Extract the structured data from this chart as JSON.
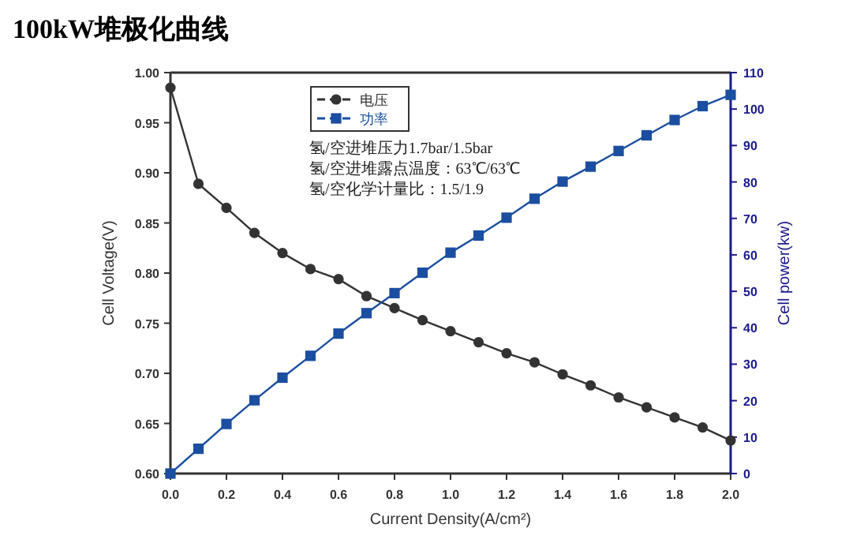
{
  "chart_data": {
    "type": "line",
    "title": "100kW堆极化曲线",
    "xlabel": "Current Density(A/cm²)",
    "ylabel": "Cell Voltage(V)",
    "y2label": "Cell power(kw)",
    "x": [
      0.0,
      0.1,
      0.2,
      0.3,
      0.4,
      0.5,
      0.6,
      0.7,
      0.8,
      0.9,
      1.0,
      1.1,
      1.2,
      1.3,
      1.4,
      1.5,
      1.6,
      1.7,
      1.8,
      1.9,
      2.0
    ],
    "series": [
      {
        "name": "电压",
        "color": "#333333",
        "marker": "circle",
        "values": [
          0.985,
          0.889,
          0.865,
          0.84,
          0.82,
          0.804,
          0.794,
          0.777,
          0.765,
          0.753,
          0.742,
          0.731,
          0.72,
          0.711,
          0.699,
          0.688,
          0.676,
          0.666,
          0.656,
          0.646,
          0.633
        ]
      },
      {
        "name": "功率",
        "color": "#1a4ea0",
        "marker": "square",
        "axis": "y2",
        "values": [
          0,
          6.8,
          13.6,
          20.1,
          26.3,
          32.3,
          38.4,
          44.0,
          49.5,
          55.1,
          60.6,
          65.3,
          70.2,
          75.4,
          80.1,
          84.2,
          88.5,
          92.8,
          97.0,
          100.8,
          103.9
        ]
      }
    ],
    "xlim": [
      0,
      2.0
    ],
    "xticks": [
      {
        "value": 0,
        "label": "0.0"
      },
      {
        "value": 0.2,
        "label": "0.2"
      },
      {
        "value": 0.4,
        "label": "0.4"
      },
      {
        "value": 0.6,
        "label": "0.6"
      },
      {
        "value": 0.8,
        "label": "0.8"
      },
      {
        "value": 1.0,
        "label": "1.0"
      },
      {
        "value": 1.2,
        "label": "1.2"
      },
      {
        "value": 1.4,
        "label": "1.4"
      },
      {
        "value": 1.6,
        "label": "1.6"
      },
      {
        "value": 1.8,
        "label": "1.8"
      },
      {
        "value": 2.0,
        "label": "2.0"
      }
    ],
    "ylim": [
      0.6,
      1.0
    ],
    "yticks": [
      {
        "value": 0.6,
        "label": "0.60"
      },
      {
        "value": 0.65,
        "label": "0.65"
      },
      {
        "value": 0.7,
        "label": "0.70"
      },
      {
        "value": 0.75,
        "label": "0.75"
      },
      {
        "value": 0.8,
        "label": "0.80"
      },
      {
        "value": 0.85,
        "label": "0.85"
      },
      {
        "value": 0.9,
        "label": "0.90"
      },
      {
        "value": 0.95,
        "label": "0.95"
      },
      {
        "value": 1.0,
        "label": "1.00"
      }
    ],
    "y2lim": [
      0,
      110
    ],
    "y2ticks": [
      0,
      10,
      20,
      30,
      40,
      50,
      60,
      70,
      80,
      90,
      100,
      110
    ],
    "annotations": [
      "氢/空进堆压力1.7bar/1.5bar",
      "氢/空进堆露点温度：63℃/63℃",
      "氢/空化学计量比：1.5/1.9"
    ],
    "legend": "top",
    "grid": false,
    "line_style": "solid"
  }
}
